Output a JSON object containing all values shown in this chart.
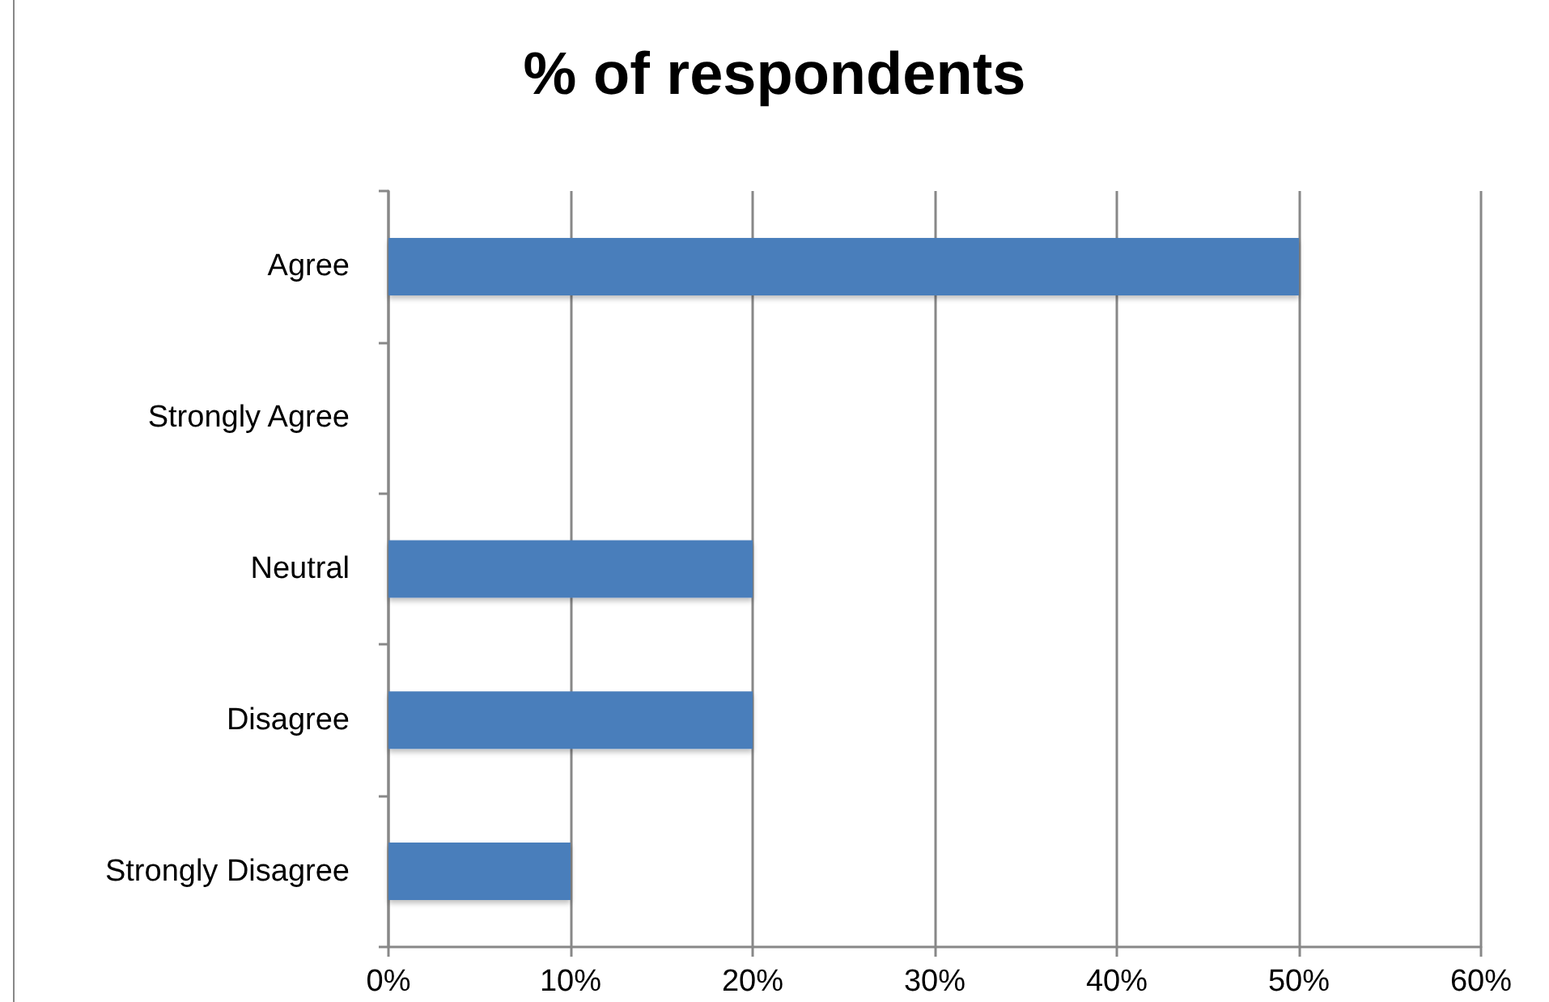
{
  "chart_data": {
    "type": "bar",
    "orientation": "horizontal",
    "title": "% of respondents",
    "categories": [
      "Agree",
      "Strongly Agree",
      "Neutral",
      "Disagree",
      "Strongly Disagree"
    ],
    "values": [
      50,
      0,
      20,
      20,
      10
    ],
    "color": "#4a7ebb",
    "xlim": [
      0,
      60
    ],
    "xticks": [
      {
        "value": 0,
        "label": "0%"
      },
      {
        "value": 10,
        "label": "10%"
      },
      {
        "value": 20,
        "label": "20%"
      },
      {
        "value": 30,
        "label": "30%"
      },
      {
        "value": 40,
        "label": "40%"
      },
      {
        "value": 50,
        "label": "50%"
      },
      {
        "value": 60,
        "label": "60%"
      }
    ],
    "grid": "x"
  }
}
